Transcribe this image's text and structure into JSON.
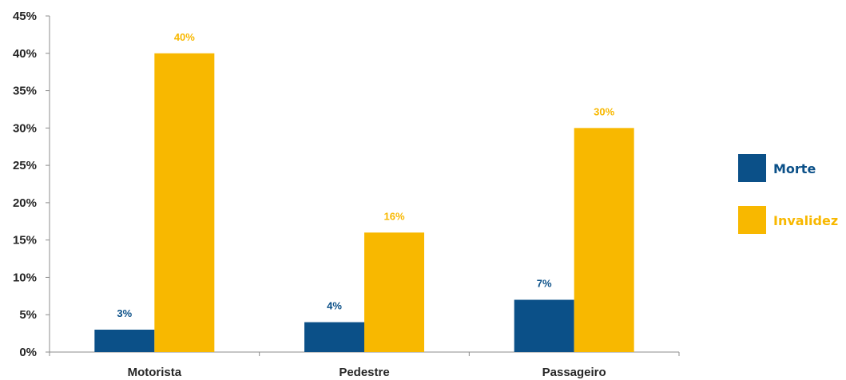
{
  "chart_data": {
    "type": "bar",
    "categories": [
      "Motorista",
      "Pedestre",
      "Passageiro"
    ],
    "series": [
      {
        "name": "Morte",
        "values": [
          3,
          4,
          7
        ],
        "color": "#0B5088",
        "labels": [
          "3%",
          "4%",
          "7%"
        ]
      },
      {
        "name": "Invalidez",
        "values": [
          40,
          16,
          30
        ],
        "color": "#F8B800",
        "labels": [
          "40%",
          "16%",
          "30%"
        ]
      }
    ],
    "y_ticks": [
      0,
      5,
      10,
      15,
      20,
      25,
      30,
      35,
      40,
      45
    ],
    "y_tick_labels": [
      "0%",
      "5%",
      "10%",
      "15%",
      "20%",
      "25%",
      "30%",
      "35%",
      "40%",
      "45%"
    ],
    "ylim": [
      0,
      45
    ],
    "grid": false,
    "legend_position": "right"
  }
}
